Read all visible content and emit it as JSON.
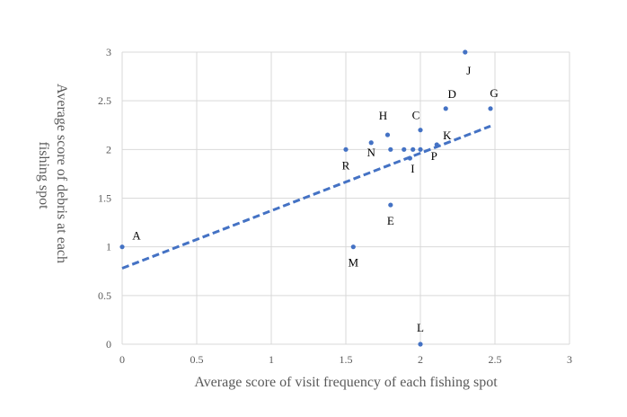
{
  "chart_data": {
    "type": "scatter",
    "title": "",
    "xlabel": "Average score of visit frequency of each fishing spot",
    "ylabel_lines": [
      "Average score of debris at each",
      "fishing spot"
    ],
    "xlim": [
      0,
      3
    ],
    "ylim": [
      0,
      3
    ],
    "x_ticks": [
      "0",
      "0.5",
      "1",
      "1.5",
      "2",
      "2.5",
      "3"
    ],
    "y_ticks": [
      "0",
      "0.5",
      "1",
      "1.5",
      "2",
      "2.5",
      "3"
    ],
    "grid": true,
    "legend": "none",
    "colors": {
      "points": "#4472c4",
      "trendline": "#4472c4",
      "grid": "#d9d9d9",
      "text": "#595959"
    },
    "points": [
      {
        "x": 0.0,
        "y": 1.0,
        "label": "A"
      },
      {
        "x": 1.55,
        "y": 1.0,
        "label": "M"
      },
      {
        "x": 1.5,
        "y": 2.0,
        "label": "R"
      },
      {
        "x": 1.67,
        "y": 2.07,
        "label": "N"
      },
      {
        "x": 1.78,
        "y": 2.15,
        "label": "H"
      },
      {
        "x": 1.8,
        "y": 2.0,
        "label": ""
      },
      {
        "x": 1.8,
        "y": 1.43,
        "label": "E"
      },
      {
        "x": 1.89,
        "y": 2.0,
        "label": ""
      },
      {
        "x": 1.93,
        "y": 1.91,
        "label": "I"
      },
      {
        "x": 1.95,
        "y": 2.0,
        "label": ""
      },
      {
        "x": 2.0,
        "y": 2.2,
        "label": "C"
      },
      {
        "x": 2.0,
        "y": 2.0,
        "label": ""
      },
      {
        "x": 2.0,
        "y": 0.0,
        "label": "L"
      },
      {
        "x": 2.11,
        "y": 2.05,
        "label": "P"
      },
      {
        "x": 2.17,
        "y": 2.42,
        "label": "D"
      },
      {
        "x": 2.3,
        "y": 3.0,
        "label": "J"
      },
      {
        "x": 2.47,
        "y": 2.42,
        "label": "G"
      }
    ],
    "extra_labels": [
      {
        "text": "K",
        "x": 2.18,
        "y": 2.14
      }
    ],
    "trendline": {
      "type": "linear",
      "style": "dashed",
      "x0": 0.0,
      "y0": 0.78,
      "x1": 2.47,
      "y1": 2.24
    }
  }
}
